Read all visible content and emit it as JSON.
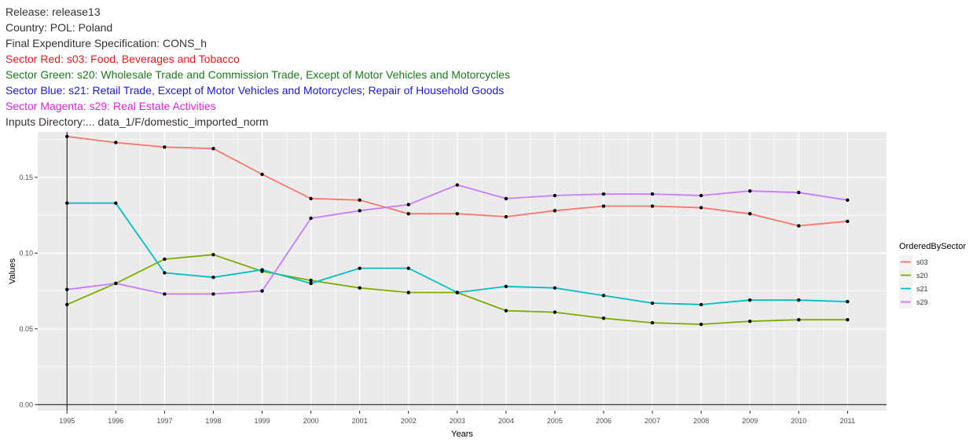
{
  "header": {
    "release": "Release: release13",
    "country": "Country: POL: Poland",
    "spec": "Final Expenditure Specification: CONS_h",
    "sector_red": "Sector Red: s03: Food, Beverages and Tobacco",
    "sector_green": "Sector Green: s20: Wholesale Trade and Commission Trade, Except of Motor Vehicles and Motorcycles",
    "sector_blue": "Sector Blue: s21: Retail Trade, Except of Motor Vehicles and Motorcycles; Repair of Household Goods",
    "sector_magenta": "Sector Magenta: s29: Real Estate Activities",
    "inputs_dir": "Inputs Directory:... data_1/F/domestic_imported_norm"
  },
  "colors": {
    "header_default": "#333333",
    "header_red": "#e31a1c",
    "header_green": "#1a7a1a",
    "header_blue": "#1a1acc",
    "header_magenta": "#dd22dd",
    "panel": "#ebebeb",
    "grid": "#ffffff"
  },
  "chart_data": {
    "type": "line",
    "xlabel": "Years",
    "ylabel": "Values",
    "x": [
      1995,
      1996,
      1997,
      1998,
      1999,
      2000,
      2001,
      2002,
      2003,
      2004,
      2005,
      2006,
      2007,
      2008,
      2009,
      2010,
      2011
    ],
    "xlim": [
      1994.4,
      2011.8
    ],
    "ylim": [
      -0.004,
      0.18
    ],
    "yticks": [
      0.0,
      0.05,
      0.1,
      0.15
    ],
    "ytick_labels": [
      "0.00",
      "0.05",
      "0.10",
      "0.15"
    ],
    "vline_x": 1995,
    "hline_y": 0,
    "grid": true,
    "legend": {
      "title": "OrderedBySector",
      "position": "right"
    },
    "series": [
      {
        "name": "s03",
        "color": "#f8766d",
        "values": [
          0.177,
          0.173,
          0.17,
          0.169,
          0.152,
          0.136,
          0.135,
          0.126,
          0.126,
          0.124,
          0.128,
          0.131,
          0.131,
          0.13,
          0.126,
          0.118,
          0.121
        ]
      },
      {
        "name": "s20",
        "color": "#7cae00",
        "values": [
          0.066,
          0.08,
          0.096,
          0.099,
          0.088,
          0.082,
          0.077,
          0.074,
          0.074,
          0.062,
          0.061,
          0.057,
          0.054,
          0.053,
          0.055,
          0.056,
          0.056
        ]
      },
      {
        "name": "s21",
        "color": "#00bfc4",
        "values": [
          0.133,
          0.133,
          0.087,
          0.084,
          0.089,
          0.08,
          0.09,
          0.09,
          0.074,
          0.078,
          0.077,
          0.072,
          0.067,
          0.066,
          0.069,
          0.069,
          0.068
        ]
      },
      {
        "name": "s29",
        "color": "#c77cff",
        "values": [
          0.076,
          0.08,
          0.073,
          0.073,
          0.075,
          0.123,
          0.128,
          0.132,
          0.145,
          0.136,
          0.138,
          0.139,
          0.139,
          0.138,
          0.141,
          0.14,
          0.135
        ]
      }
    ]
  }
}
